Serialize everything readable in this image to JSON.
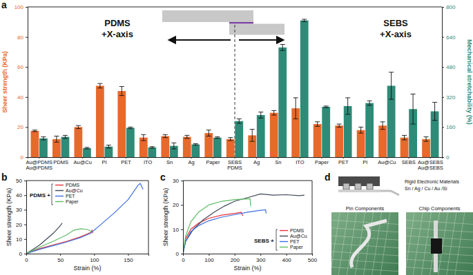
{
  "chart_data": [
    {
      "panel": "a",
      "type": "bar",
      "categories": [
        "Au@PDMS\nAu@PDMS",
        "PDMS",
        "Au@Cu",
        "PI",
        "PET",
        "ITO",
        "Sn",
        "Ag",
        "Paper",
        "SEBS\nPDMS",
        "Ag",
        "Sn",
        "ITO",
        "Paper",
        "PET",
        "PI",
        "Au@Cu",
        "SEBS",
        "Au@SEBS\nAu@SEBS"
      ],
      "ylabel": "Sheer strength (KPa)",
      "y2label": "Mechanical stretchability (%)",
      "ylim": [
        0,
        100
      ],
      "yticks": [
        0,
        20,
        40,
        60,
        80,
        100
      ],
      "y2lim": [
        0,
        800
      ],
      "y2ticks": [
        0,
        160,
        320,
        480,
        640,
        800
      ],
      "annotations": [
        "PDMS\n+X-axis",
        "SEBS\n+X-axis"
      ],
      "grid": false,
      "series": [
        {
          "color": "#e8692c",
          "values": [
            17.5,
            12,
            20,
            47.5,
            44,
            13,
            14,
            13.5,
            16,
            12,
            14.5,
            29.5,
            32.5,
            22,
            21,
            18,
            21,
            13,
            12
          ],
          "errors": [
            0.5,
            2,
            1,
            1.5,
            3,
            2,
            1,
            1,
            2,
            1,
            4,
            1.5,
            7,
            1.5,
            1,
            2,
            2.5,
            1.5,
            1.5
          ]
        },
        {
          "color": "#2e8b78",
          "axis": "y2",
          "values": [
            100,
            108,
            48,
            56,
            156,
            52,
            60,
            68,
            104,
            192,
            224,
            584,
            728,
            268,
            272,
            288,
            380,
            256,
            244
          ],
          "errors": [
            8,
            8,
            4,
            8,
            4,
            4,
            16,
            4,
            4,
            12,
            16,
            16,
            6,
            4,
            44,
            12,
            72,
            80,
            48
          ]
        }
      ]
    },
    {
      "panel": "b",
      "type": "line",
      "xlabel": "Strain (%)",
      "ylabel": "Sheer strength (KPa)",
      "xlim": [
        0,
        180
      ],
      "xticks": [
        0,
        50,
        100,
        150
      ],
      "ylim": [
        0,
        50
      ],
      "yticks": [
        0,
        10,
        20,
        30,
        40,
        50
      ],
      "legend": "upper left",
      "legend_title": "PDMS +",
      "grid": false,
      "series": [
        {
          "name": "PDMS",
          "color": "#e8313a",
          "x": [
            0,
            20,
            40,
            60,
            80,
            95,
            97,
            98
          ],
          "values": [
            0,
            3.5,
            6,
            8.5,
            11.5,
            14.5,
            16,
            14
          ]
        },
        {
          "name": "Au@Cu",
          "color": "#3e4756",
          "x": [
            0,
            10,
            20,
            30,
            40,
            50,
            53
          ],
          "values": [
            0,
            3,
            6,
            10,
            14,
            19,
            21
          ]
        },
        {
          "name": "PET",
          "color": "#3b6fe0",
          "x": [
            0,
            20,
            40,
            60,
            80,
            95,
            110,
            130,
            150,
            165,
            168,
            172
          ],
          "values": [
            0,
            3,
            5.5,
            8,
            11,
            14,
            20,
            28,
            37,
            47,
            48,
            44
          ]
        },
        {
          "name": "Paper",
          "color": "#5dbb63",
          "x": [
            0,
            20,
            40,
            60,
            70,
            80,
            90,
            97
          ],
          "values": [
            0,
            4.5,
            8.5,
            13,
            16,
            17,
            16.5,
            15
          ]
        }
      ]
    },
    {
      "panel": "c",
      "type": "line",
      "xlabel": "Strain (%)",
      "ylabel": "Sheer strength (KPa)",
      "xlim": [
        0,
        500
      ],
      "xticks": [
        0,
        100,
        200,
        300,
        400,
        500
      ],
      "ylim": [
        0,
        30
      ],
      "yticks": [
        0,
        10,
        20,
        30
      ],
      "legend": "lower right",
      "legend_title": "SEBS +",
      "grid": false,
      "series": [
        {
          "name": "PDMS",
          "color": "#e8313a",
          "x": [
            0,
            10,
            30,
            60,
            100,
            150,
            200,
            225,
            232
          ],
          "values": [
            0,
            6,
            10,
            12.5,
            14.5,
            15.8,
            16.5,
            17,
            15.5
          ]
        },
        {
          "name": "Au@Cu",
          "color": "#3e4756",
          "x": [
            0,
            10,
            40,
            80,
            120,
            160,
            200,
            250,
            300,
            350,
            400,
            450,
            470
          ],
          "values": [
            0,
            5,
            10,
            14,
            17,
            19.5,
            21.5,
            23,
            24.5,
            24,
            24.2,
            23.8,
            24
          ]
        },
        {
          "name": "PET",
          "color": "#3b6fe0",
          "x": [
            0,
            10,
            30,
            60,
            100,
            150,
            200,
            250,
            300,
            320,
            322
          ],
          "values": [
            0,
            5,
            9,
            11.5,
            13.5,
            15,
            16,
            17,
            17.8,
            18,
            16.5
          ]
        },
        {
          "name": "Paper",
          "color": "#5dbb63",
          "x": [
            0,
            10,
            30,
            60,
            100,
            150,
            200,
            260,
            262
          ],
          "values": [
            0,
            7,
            13,
            17,
            20,
            21.5,
            22.2,
            22.5,
            19.5
          ]
        }
      ]
    }
  ],
  "panel_d": {
    "panel": "d",
    "title": "Rigid Electronic Materials",
    "subtitle": "Sn / Ag / Cu / Au /Si",
    "photos": [
      "Pin Components",
      "Chip Components"
    ]
  }
}
